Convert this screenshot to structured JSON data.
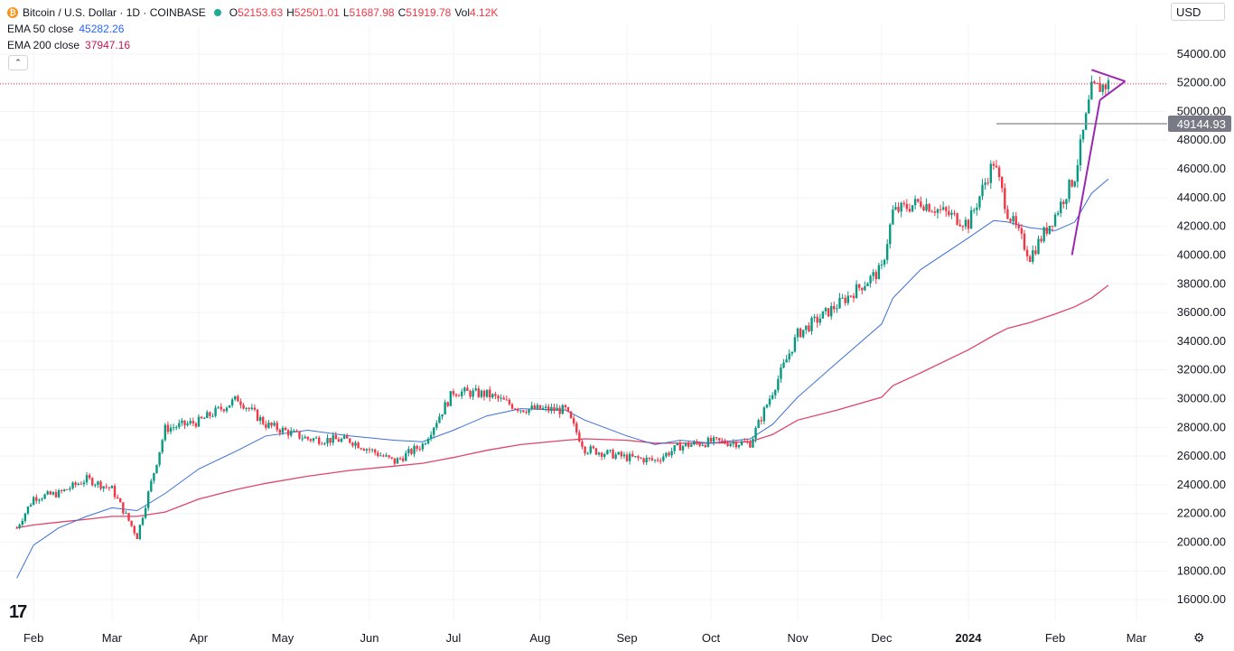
{
  "header": {
    "symbol": "Bitcoin / U.S. Dollar · 1D · COINBASE",
    "open_label": "O",
    "open": "52153.63",
    "high_label": "H",
    "high": "52501.01",
    "low_label": "L",
    "low": "51687.98",
    "close_label": "C",
    "close": "51919.78",
    "vol_label": "Vol",
    "vol": "4.12K",
    "currency": "USD",
    "coin_glyph": "₿",
    "collapse_glyph": "⌃",
    "logo": "17",
    "settings_glyph": "⚙"
  },
  "indicators": [
    {
      "name": "EMA 50 close",
      "value": "45282.26",
      "color": "#2962ff"
    },
    {
      "name": "EMA 200 close",
      "value": "37947.16",
      "color": "#c2185b"
    }
  ],
  "colors": {
    "up": "#089981",
    "down": "#f23645",
    "pattern": "#9c27b0",
    "grid": "#f0f3fa",
    "level": "#9598a1"
  },
  "chart_data": {
    "type": "line",
    "title": "Bitcoin / U.S. Dollar · 1D · COINBASE",
    "ylim": [
      14500,
      56000
    ],
    "y_ticks": [
      "54000.00",
      "52000.00",
      "50000.00",
      "48000.00",
      "46000.00",
      "44000.00",
      "42000.00",
      "40000.00",
      "38000.00",
      "36000.00",
      "34000.00",
      "32000.00",
      "30000.00",
      "28000.00",
      "26000.00",
      "24000.00",
      "22000.00",
      "20000.00",
      "18000.00",
      "16000.00"
    ],
    "x_ticks": [
      "Feb",
      "Mar",
      "Apr",
      "May",
      "Jun",
      "Jul",
      "Aug",
      "Sep",
      "Oct",
      "Nov",
      "Dec",
      "2024",
      "Feb",
      "Mar"
    ],
    "x": [
      "2023-01-26",
      "2023-02-01",
      "2023-02-10",
      "2023-02-20",
      "2023-03-01",
      "2023-03-10",
      "2023-03-20",
      "2023-04-01",
      "2023-04-15",
      "2023-04-25",
      "2023-05-10",
      "2023-05-25",
      "2023-06-10",
      "2023-06-20",
      "2023-07-01",
      "2023-07-13",
      "2023-07-25",
      "2023-08-10",
      "2023-08-17",
      "2023-09-01",
      "2023-09-11",
      "2023-09-20",
      "2023-10-01",
      "2023-10-15",
      "2023-10-23",
      "2023-11-01",
      "2023-11-15",
      "2023-12-01",
      "2023-12-05",
      "2023-12-15",
      "2024-01-01",
      "2024-01-10",
      "2024-01-15",
      "2024-01-23",
      "2024-02-01",
      "2024-02-08",
      "2024-02-14",
      "2024-02-20"
    ],
    "series": [
      {
        "name": "BTCUSD close",
        "values": [
          21000,
          23100,
          23400,
          24400,
          23700,
          20400,
          27900,
          28400,
          30000,
          28200,
          27200,
          27100,
          25600,
          26800,
          30500,
          30300,
          29300,
          29200,
          26500,
          25900,
          25700,
          26700,
          27000,
          26900,
          30500,
          34500,
          36500,
          39000,
          43000,
          43700,
          42200,
          46500,
          43000,
          39900,
          42800,
          45500,
          51500,
          51900
        ]
      },
      {
        "name": "EMA 50 close",
        "values": [
          17500,
          19800,
          21000,
          21800,
          22400,
          22200,
          23400,
          25100,
          26400,
          27400,
          27800,
          27400,
          27100,
          27000,
          27800,
          28800,
          29300,
          29200,
          28500,
          27400,
          26800,
          27100,
          26900,
          27200,
          28200,
          30100,
          32500,
          35200,
          37000,
          39000,
          41200,
          42400,
          42300,
          41900,
          41700,
          42300,
          44300,
          45300
        ]
      },
      {
        "name": "EMA 200 close",
        "values": [
          21000,
          21200,
          21400,
          21600,
          21800,
          21800,
          22100,
          23000,
          23700,
          24100,
          24600,
          25000,
          25300,
          25500,
          25900,
          26400,
          26800,
          27100,
          27200,
          27100,
          26900,
          26900,
          26900,
          27000,
          27500,
          28500,
          29200,
          30100,
          30900,
          31800,
          33400,
          34400,
          34900,
          35300,
          35900,
          36400,
          37000,
          37900
        ]
      }
    ],
    "price_line": 51919.78,
    "resistance_level": {
      "label": "49144.93",
      "value": 49144.93,
      "from": "2024-01-11"
    },
    "pattern": {
      "type": "pennant",
      "flagpole": [
        {
          "x": "2024-02-07",
          "y": 40000
        },
        {
          "x": "2024-02-17",
          "y": 50800
        }
      ],
      "upper": [
        {
          "x": "2024-02-14",
          "y": 52900
        },
        {
          "x": "2024-02-26",
          "y": 52100
        }
      ],
      "lower": [
        {
          "x": "2024-02-17",
          "y": 50800
        },
        {
          "x": "2024-02-26",
          "y": 52100
        }
      ]
    }
  }
}
